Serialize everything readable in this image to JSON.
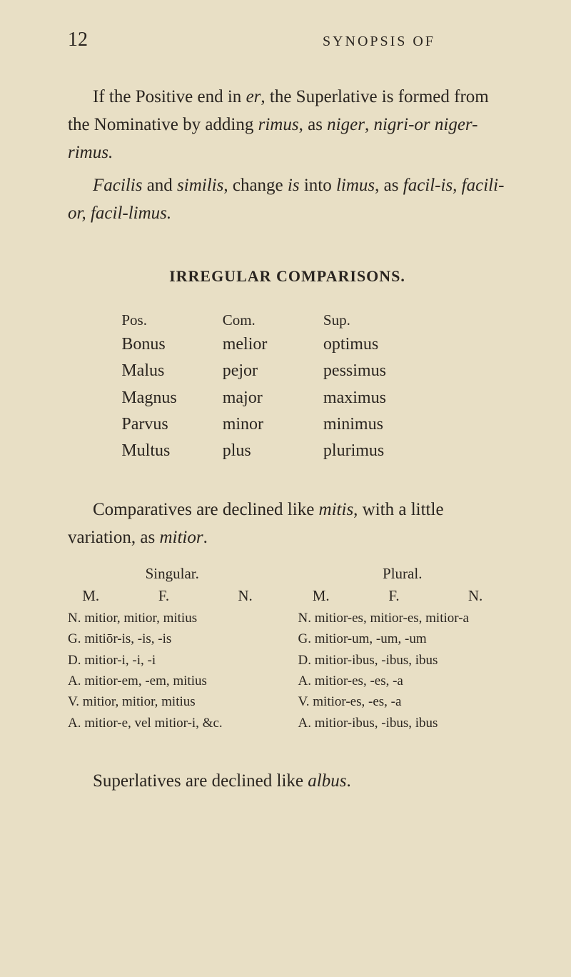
{
  "pageNumber": "12",
  "runningHead": "SYNOPSIS OF",
  "para1_a": "If the Positive end in ",
  "para1_b": "er",
  "para1_c": ", the Superlative is formed from the Nominative by adding ",
  "para1_d": "rimus",
  "para1_e": ", as ",
  "para1_f": "niger",
  "para1_g": ", ",
  "para1_h": "nigri-or niger-rimus.",
  "para2_a": "Facilis",
  "para2_b": " and ",
  "para2_c": "similis",
  "para2_d": ", change ",
  "para2_e": "is",
  "para2_f": " into ",
  "para2_g": "limus",
  "para2_h": ", as ",
  "para2_i": "facil-is, facili-or, facil-limus.",
  "sectionHeading": "IRREGULAR COMPARISONS.",
  "comparisonTable": {
    "header": [
      "Pos.",
      "Com.",
      "Sup."
    ],
    "rows": [
      [
        "Bonus",
        "melior",
        "optimus"
      ],
      [
        "Malus",
        "pejor",
        "pessimus"
      ],
      [
        "Magnus",
        "major",
        "maximus"
      ],
      [
        "Parvus",
        "minor",
        "minimus"
      ],
      [
        "Multus",
        "plus",
        "plurimus"
      ]
    ]
  },
  "para3_a": "Comparatives are declined like ",
  "para3_b": "mitis",
  "para3_c": ", with a little variation, as ",
  "para3_d": "mitior",
  "para3_e": ".",
  "declension": {
    "singular": {
      "heading": "Singular.",
      "subhead": [
        "M.",
        "F.",
        "N."
      ],
      "rows": [
        "N. mitior, mitior, mitius",
        "G. mitiōr-is,    -is,       -is",
        "D. mitior-i,      -i,         -i",
        "A. mitior-em,  -em,   mitius",
        "V. mitior, mitior, mitius",
        "A. mitior-e, vel mitior-i, &c."
      ]
    },
    "plural": {
      "heading": "Plural.",
      "subhead": [
        "M.",
        "F.",
        "N."
      ],
      "rows": [
        "N. mitior-es, mitior-es, mitior-a",
        "G. mitior-um,     -um,     -um",
        "D. mitior-ibus,    -ibus,   ibus",
        "A. mitior-es,        -es,       -a",
        "V. mitior-es,        -es,       -a",
        "A. mitior-ibus,    -ibus,   ibus"
      ]
    }
  },
  "para4_a": "Superlatives are declined like ",
  "para4_b": "albus",
  "para4_c": ".",
  "colors": {
    "background": "#e8dfc5",
    "text": "#2a2520"
  }
}
